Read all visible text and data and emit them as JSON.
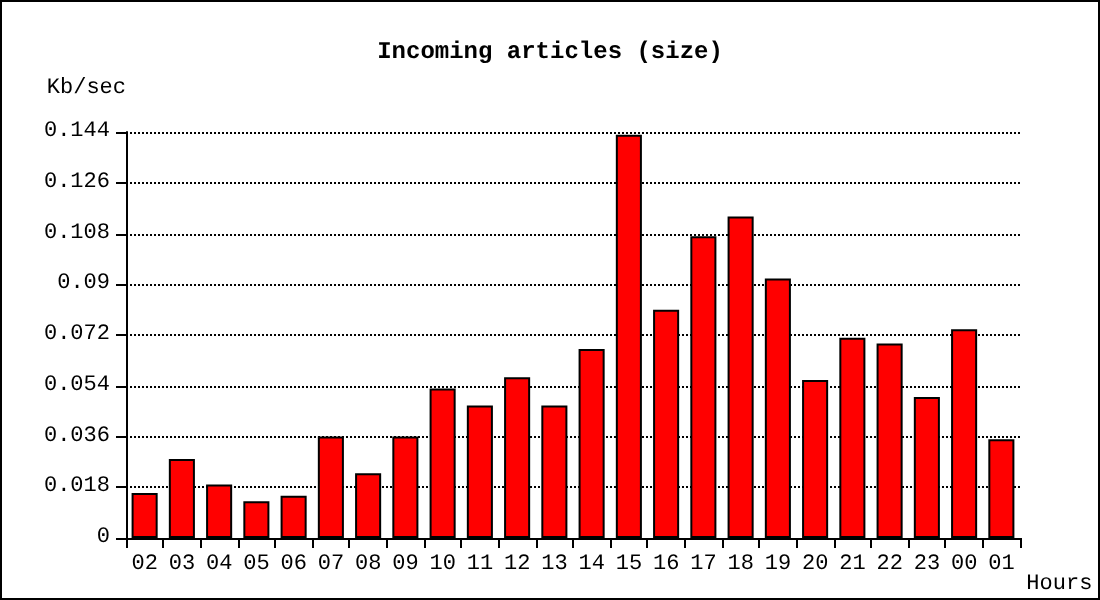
{
  "chart_data": {
    "type": "bar",
    "title": "Incoming articles (size)",
    "xlabel": "Hours",
    "ylabel": "Kb/sec",
    "categories": [
      "02",
      "03",
      "04",
      "05",
      "06",
      "07",
      "08",
      "09",
      "10",
      "11",
      "12",
      "13",
      "14",
      "15",
      "16",
      "17",
      "18",
      "19",
      "20",
      "21",
      "22",
      "23",
      "00",
      "01"
    ],
    "values": [
      0.016,
      0.028,
      0.019,
      0.013,
      0.015,
      0.036,
      0.023,
      0.036,
      0.053,
      0.047,
      0.057,
      0.047,
      0.067,
      0.143,
      0.081,
      0.107,
      0.114,
      0.092,
      0.056,
      0.071,
      0.069,
      0.05,
      0.074,
      0.035
    ],
    "color": "#ff0000",
    "ylim": [
      0,
      0.144
    ],
    "yticks": [
      0,
      0.018,
      0.036,
      0.054,
      0.072,
      0.09,
      0.108,
      0.126,
      0.144
    ],
    "grid": "y",
    "line_style": "dotted"
  }
}
